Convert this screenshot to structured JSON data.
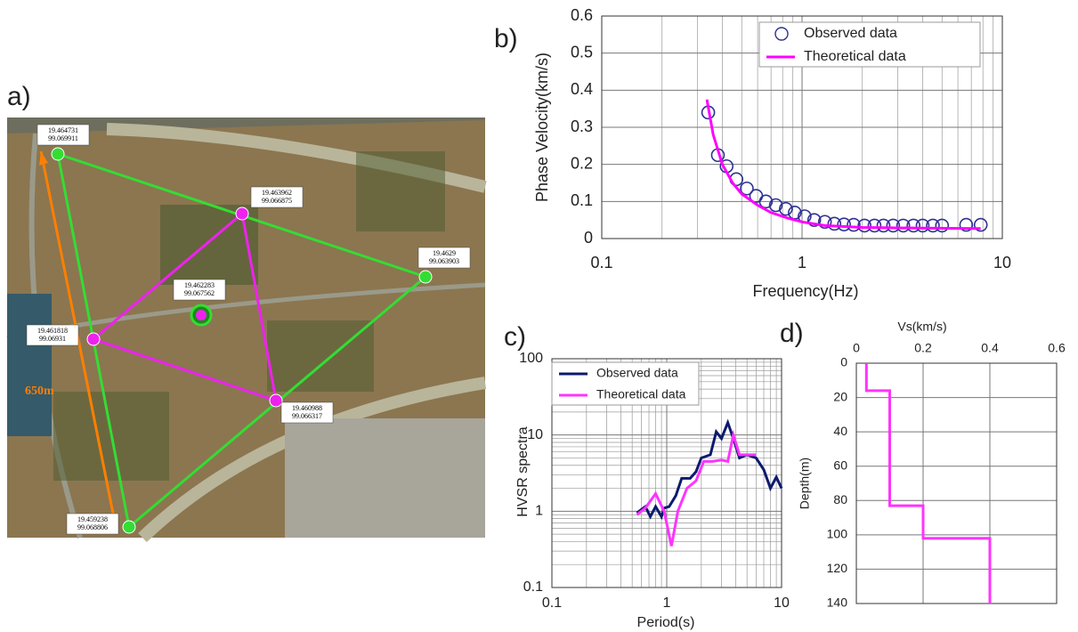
{
  "map": {
    "panel_label": "a)",
    "distance_label": "650m",
    "points": [
      {
        "lat": "19.464731",
        "lon": "99.069911"
      },
      {
        "lat": "19.463962",
        "lon": "99.066875"
      },
      {
        "lat": "19.4629",
        "lon": "99.063903"
      },
      {
        "lat": "19.462283",
        "lon": "99.067562"
      },
      {
        "lat": "19.461818",
        "lon": "99.06931"
      },
      {
        "lat": "19.460988",
        "lon": "99.066317"
      },
      {
        "lat": "19.459238",
        "lon": "99.068806"
      }
    ]
  },
  "chart_data": [
    {
      "type": "scatter-line",
      "panel_label": "b)",
      "xlabel": "Frequency(Hz)",
      "ylabel": "Phase Velocity(km/s)",
      "xlog": true,
      "xlim": [
        0.1,
        10
      ],
      "xticks": [
        0.1,
        1,
        10
      ],
      "ylim": [
        0,
        0.6
      ],
      "yticks": [
        0,
        0.1,
        0.2,
        0.3,
        0.4,
        0.5,
        0.6
      ],
      "grid": true,
      "minor_grid": true,
      "legend": "upper right",
      "series": [
        {
          "name": "Observed data",
          "color": "#2e3192",
          "marker": "circle",
          "x": [
            0.34,
            0.38,
            0.42,
            0.47,
            0.53,
            0.59,
            0.66,
            0.74,
            0.83,
            0.92,
            1.03,
            1.15,
            1.3,
            1.45,
            1.62,
            1.81,
            2.05,
            2.3,
            2.55,
            2.85,
            3.2,
            3.6,
            4.0,
            4.5,
            5.0,
            6.6,
            7.8
          ],
          "values": [
            0.34,
            0.225,
            0.195,
            0.16,
            0.135,
            0.115,
            0.1,
            0.09,
            0.08,
            0.07,
            0.06,
            0.05,
            0.045,
            0.04,
            0.038,
            0.037,
            0.035,
            0.035,
            0.035,
            0.035,
            0.035,
            0.035,
            0.035,
            0.035,
            0.035,
            0.037,
            0.037
          ]
        },
        {
          "name": "Theoretical data",
          "color": "#ff00ff",
          "marker": "line",
          "x": [
            0.335,
            0.36,
            0.4,
            0.45,
            0.5,
            0.6,
            0.7,
            0.85,
            1,
            1.3,
            2,
            4,
            7.8
          ],
          "values": [
            0.375,
            0.28,
            0.2,
            0.15,
            0.12,
            0.09,
            0.07,
            0.055,
            0.045,
            0.035,
            0.03,
            0.028,
            0.027
          ]
        }
      ]
    },
    {
      "type": "line",
      "panel_label": "c)",
      "xlabel": "Period(s)",
      "ylabel": "HVSR spectra",
      "xlog": true,
      "ylog": true,
      "xlim": [
        0.1,
        10
      ],
      "xticks": [
        0.1,
        1,
        10
      ],
      "ylim": [
        0.1,
        100
      ],
      "yticks": [
        0.1,
        1,
        10,
        100
      ],
      "grid": true,
      "minor_grid": true,
      "legend": "upper left",
      "series": [
        {
          "name": "Observed data",
          "color": "#0d1a6e",
          "marker": "line",
          "x": [
            0.55,
            0.65,
            0.72,
            0.8,
            0.9,
            0.95,
            1.05,
            1.2,
            1.35,
            1.6,
            1.8,
            2.0,
            2.4,
            2.7,
            3.0,
            3.4,
            3.8,
            4.3,
            5.0,
            6,
            7,
            8,
            9,
            10
          ],
          "values": [
            0.95,
            1.15,
            0.85,
            1.15,
            0.85,
            1.1,
            1.15,
            1.6,
            2.7,
            2.7,
            3.3,
            5.0,
            5.5,
            11,
            9,
            14.5,
            9,
            5.0,
            5.5,
            5,
            3.5,
            2,
            2.8,
            2
          ]
        },
        {
          "name": "Theoretical data",
          "color": "#ff33ff",
          "marker": "line",
          "x": [
            0.55,
            0.65,
            0.8,
            0.95,
            1.1,
            1.25,
            1.5,
            1.8,
            2.1,
            2.5,
            3,
            3.4,
            3.8,
            4.3,
            5,
            6
          ],
          "values": [
            0.9,
            1.1,
            1.7,
            1.0,
            0.35,
            1.0,
            2.0,
            2.5,
            4.5,
            4.5,
            4.7,
            4.5,
            10,
            5.5,
            5.5,
            5.5
          ]
        }
      ]
    },
    {
      "type": "line",
      "panel_label": "d)",
      "xlabel": "Vs(km/s)",
      "ylabel": "Depth(m)",
      "xlim": [
        0,
        0.6
      ],
      "xticks": [
        0,
        0.2,
        0.4,
        0.6
      ],
      "ylim": [
        0,
        140
      ],
      "yticks": [
        0,
        20,
        40,
        60,
        80,
        100,
        120,
        140
      ],
      "yinvert": true,
      "xaxis": "top",
      "grid": true,
      "series": [
        {
          "color": "#ff33ff",
          "marker": "line",
          "x": [
            0.03,
            0.03,
            0.1,
            0.1,
            0.2,
            0.2,
            0.4,
            0.4
          ],
          "values": [
            0,
            16,
            16,
            83,
            83,
            102,
            102,
            140
          ]
        }
      ]
    }
  ]
}
